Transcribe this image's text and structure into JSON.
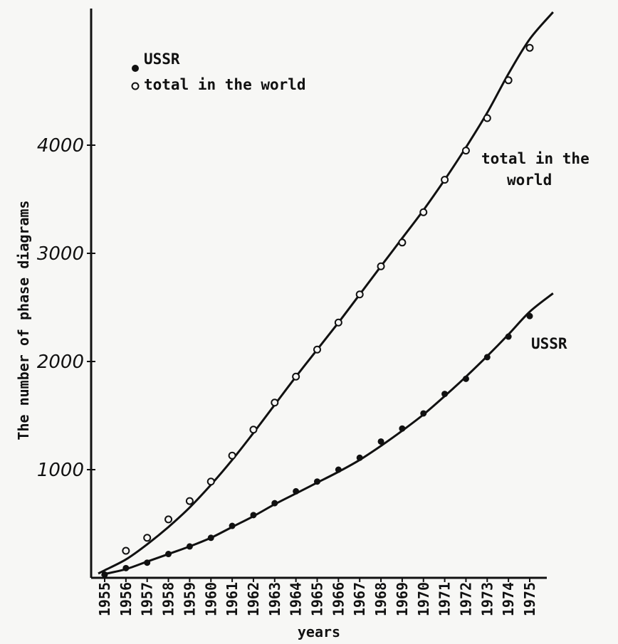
{
  "chart_data": {
    "type": "line",
    "title": "",
    "xlabel": "years",
    "ylabel": "The number of phase diagrams",
    "x": [
      1955,
      1956,
      1957,
      1958,
      1959,
      1960,
      1961,
      1962,
      1963,
      1964,
      1965,
      1966,
      1967,
      1968,
      1969,
      1970,
      1971,
      1972,
      1973,
      1974,
      1975
    ],
    "x_tick_labels": [
      "1955",
      "1956",
      "1957",
      "1958",
      "1959",
      "1960",
      "1961",
      "1962",
      "1963",
      "1964",
      "1965",
      "1966",
      "1967",
      "1968",
      "1969",
      "1970",
      "1971",
      "1972",
      "1973",
      "1974",
      "1975"
    ],
    "y_tick_labels": [
      "1000",
      "2000",
      "3000",
      "4000"
    ],
    "y_ticks": [
      1000,
      2000,
      3000,
      4000
    ],
    "ylim": [
      0,
      5400
    ],
    "xlim": [
      1955,
      1976.2
    ],
    "grid": false,
    "legend_position": "top-left",
    "series": [
      {
        "name": "total in the world",
        "marker": "open-circle",
        "values": [
          60,
          250,
          370,
          540,
          710,
          890,
          1130,
          1370,
          1620,
          1860,
          2110,
          2360,
          2620,
          2880,
          3100,
          3380,
          3680,
          3950,
          4250,
          4600,
          4900
        ],
        "curve": [
          [
            1954.7,
            40
          ],
          [
            1955,
            70
          ],
          [
            1956,
            170
          ],
          [
            1957,
            310
          ],
          [
            1958,
            470
          ],
          [
            1959,
            650
          ],
          [
            1960,
            860
          ],
          [
            1961,
            1090
          ],
          [
            1962,
            1340
          ],
          [
            1963,
            1600
          ],
          [
            1964,
            1860
          ],
          [
            1965,
            2110
          ],
          [
            1966,
            2360
          ],
          [
            1967,
            2620
          ],
          [
            1968,
            2880
          ],
          [
            1969,
            3140
          ],
          [
            1970,
            3400
          ],
          [
            1971,
            3680
          ],
          [
            1972,
            3980
          ],
          [
            1973,
            4300
          ],
          [
            1974,
            4660
          ],
          [
            1975,
            4980
          ],
          [
            1976.1,
            5230
          ]
        ]
      },
      {
        "name": "USSR",
        "marker": "filled-circle",
        "values": [
          30,
          90,
          140,
          220,
          290,
          370,
          480,
          580,
          690,
          800,
          890,
          1000,
          1110,
          1260,
          1380,
          1520,
          1700,
          1840,
          2040,
          2230,
          2420
        ],
        "curve": [
          [
            1954.9,
            20
          ],
          [
            1955,
            35
          ],
          [
            1956,
            80
          ],
          [
            1957,
            150
          ],
          [
            1958,
            220
          ],
          [
            1959,
            290
          ],
          [
            1960,
            370
          ],
          [
            1961,
            470
          ],
          [
            1962,
            570
          ],
          [
            1963,
            680
          ],
          [
            1964,
            780
          ],
          [
            1965,
            880
          ],
          [
            1966,
            980
          ],
          [
            1967,
            1090
          ],
          [
            1968,
            1220
          ],
          [
            1969,
            1360
          ],
          [
            1970,
            1510
          ],
          [
            1971,
            1680
          ],
          [
            1972,
            1860
          ],
          [
            1973,
            2050
          ],
          [
            1974,
            2250
          ],
          [
            1975,
            2460
          ],
          [
            1976.1,
            2630
          ]
        ]
      }
    ],
    "legend": [
      {
        "label": "USSR",
        "marker": "filled-circle"
      },
      {
        "label": "total in the world",
        "marker": "open-circle"
      }
    ],
    "annotations": [
      {
        "text": "total in the",
        "series": "total in the world"
      },
      {
        "text": "world",
        "series": "total in the world"
      },
      {
        "text": "USSR",
        "series": "USSR"
      }
    ]
  }
}
